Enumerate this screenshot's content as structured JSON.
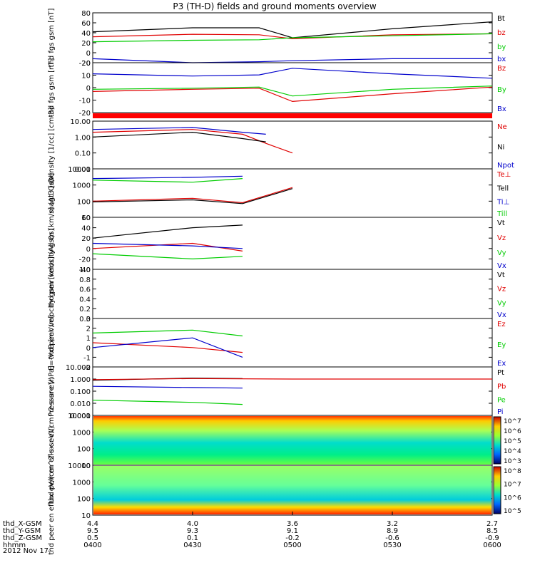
{
  "title": "P3 (TH-D) fields and ground moments overview",
  "colors": {
    "black": "#000000",
    "red": "#e00000",
    "green": "#00cc00",
    "blue": "#0000cc",
    "bar": "#ff0000"
  },
  "x_axis": {
    "tick_times": [
      "0400",
      "0430",
      "0500",
      "0530",
      "0600"
    ],
    "rows": [
      {
        "label": "thd_X-GSM",
        "values": [
          "4.4",
          "4.0",
          "3.6",
          "3.2",
          "2.7"
        ]
      },
      {
        "label": "thd_Y-GSM",
        "values": [
          "9.5",
          "9.3",
          "9.1",
          "8.9",
          "8.5"
        ]
      },
      {
        "label": "thd_Z-GSM",
        "values": [
          "0.5",
          "0.1",
          "-0.2",
          "-0.6",
          "-0.9"
        ]
      },
      {
        "label": "hhmm",
        "values": [
          "0400",
          "0430",
          "0500",
          "0530",
          "0600"
        ]
      }
    ],
    "date": "2012 Nov 17"
  },
  "chart_data": [
    {
      "type": "line",
      "ylabel": "thd fgs gsm [nT]",
      "ylim": [
        -20,
        80
      ],
      "ticks": [
        "80",
        "60",
        "40",
        "20",
        "0",
        "-20"
      ],
      "series": [
        {
          "name": "Bt",
          "color": "#000000",
          "x": [
            "0400",
            "0430",
            "0450",
            "0500",
            "0530",
            "0600"
          ],
          "values": [
            42,
            50,
            50,
            30,
            48,
            62
          ]
        },
        {
          "name": "bz",
          "color": "#e00000",
          "x": [
            "0400",
            "0430",
            "0450",
            "0500",
            "0530",
            "0600"
          ],
          "values": [
            32,
            37,
            36,
            28,
            36,
            38
          ]
        },
        {
          "name": "by",
          "color": "#00cc00",
          "x": [
            "0400",
            "0430",
            "0450",
            "0500",
            "0530",
            "0600"
          ],
          "values": [
            22,
            25,
            26,
            30,
            34,
            38
          ]
        },
        {
          "name": "bx",
          "color": "#0000cc",
          "x": [
            "0400",
            "0430",
            "0450",
            "0500",
            "0530",
            "0600"
          ],
          "values": [
            -12,
            -20,
            -18,
            -16,
            -12,
            -12
          ]
        }
      ]
    },
    {
      "type": "line",
      "ylabel": "thd fgs gsm [nT]",
      "ylim": [
        -25,
        20
      ],
      "ticks": [
        "20",
        "10",
        "0",
        "-10",
        "-20"
      ],
      "series": [
        {
          "name": "Bz",
          "color": "#e00000",
          "x": [
            "0400",
            "0430",
            "0450",
            "0500",
            "0530",
            "0600"
          ],
          "values": [
            -6,
            -4,
            -3,
            -15,
            -8,
            -2
          ]
        },
        {
          "name": "By",
          "color": "#00cc00",
          "x": [
            "0400",
            "0430",
            "0450",
            "0500",
            "0530",
            "0600"
          ],
          "values": [
            -4,
            -3,
            -2,
            -10,
            -4,
            -1
          ]
        },
        {
          "name": "Bx",
          "color": "#0000cc",
          "x": [
            "0400",
            "0430",
            "0450",
            "0500",
            "0530",
            "0600"
          ],
          "values": [
            10,
            8,
            9,
            15,
            10,
            6
          ]
        }
      ]
    },
    {
      "type": "line",
      "ylabel": "Density [1/cc] [cm-3]",
      "ylim": [
        0.01,
        10
      ],
      "log": true,
      "ticks": [
        "10.00",
        "1.00",
        "0.10",
        "0.01"
      ],
      "series": [
        {
          "name": "Ne",
          "color": "#e00000",
          "x": [
            "0400",
            "0430",
            "0445",
            "0452",
            "0500"
          ],
          "values": [
            2,
            3,
            1.5,
            0.4,
            0.1
          ]
        },
        {
          "name": "Ni",
          "color": "#000000",
          "x": [
            "0400",
            "0430",
            "0445",
            "0452"
          ],
          "values": [
            1,
            2,
            0.8,
            0.5
          ]
        },
        {
          "name": "Npot",
          "color": "#0000cc",
          "x": [
            "0400",
            "0430",
            "0445",
            "0452"
          ],
          "values": [
            3,
            4,
            2,
            1.5
          ]
        }
      ]
    },
    {
      "type": "line",
      "ylabel": "magt3 [eV]",
      "ylim": [
        10,
        10000
      ],
      "log": true,
      "ticks": [
        "10000",
        "1000",
        "100",
        "10"
      ],
      "series": [
        {
          "name": "Te⊥",
          "color": "#e00000",
          "x": [
            "0400",
            "0430",
            "0445",
            "0500"
          ],
          "values": [
            100,
            150,
            80,
            700
          ]
        },
        {
          "name": "Tell",
          "color": "#000000",
          "x": [
            "0400",
            "0430",
            "0445",
            "0500"
          ],
          "values": [
            90,
            120,
            70,
            600
          ]
        },
        {
          "name": "Ti⊥",
          "color": "#0000cc",
          "x": [
            "0400",
            "0430",
            "0445"
          ],
          "values": [
            2500,
            3000,
            3500
          ]
        },
        {
          "name": "Till",
          "color": "#00cc00",
          "x": [
            "0400",
            "0430",
            "0445"
          ],
          "values": [
            2000,
            1500,
            2500
          ]
        }
      ]
    },
    {
      "type": "line",
      "ylabel": "thd peir velocity gsm [km/s] (All Qs)",
      "ylim": [
        -40,
        60
      ],
      "ticks": [
        "60",
        "40",
        "20",
        "0",
        "-20",
        "-40"
      ],
      "series": [
        {
          "name": "Vt",
          "color": "#000000",
          "x": [
            "0400",
            "0430",
            "0445"
          ],
          "values": [
            20,
            40,
            45
          ]
        },
        {
          "name": "Vz",
          "color": "#e00000",
          "x": [
            "0400",
            "0430",
            "0445"
          ],
          "values": [
            0,
            10,
            -5
          ]
        },
        {
          "name": "Vy",
          "color": "#00cc00",
          "x": [
            "0400",
            "0430",
            "0445"
          ],
          "values": [
            -10,
            -20,
            -15
          ]
        },
        {
          "name": "Vx",
          "color": "#0000cc",
          "x": [
            "0400",
            "0430",
            "0445"
          ],
          "values": [
            10,
            5,
            0
          ]
        }
      ]
    },
    {
      "type": "line",
      "ylabel": "thd peer velocity gsm [km/s] (All Qs)",
      "ylim": [
        0,
        1
      ],
      "ticks": [
        "1.0",
        "0.8",
        "0.6",
        "0.4",
        "0.2",
        "0.0"
      ],
      "series": [
        {
          "name": "Vt",
          "color": "#000000",
          "x": [],
          "values": []
        },
        {
          "name": "Vz",
          "color": "#e00000",
          "x": [],
          "values": []
        },
        {
          "name": "Vy",
          "color": "#00cc00",
          "x": [],
          "values": []
        },
        {
          "name": "Vx",
          "color": "#0000cc",
          "x": [],
          "values": []
        }
      ]
    },
    {
      "type": "line",
      "ylabel": "E=-VxB [mV/m]",
      "ylim": [
        -2,
        3
      ],
      "ticks": [
        "3",
        "2",
        "1",
        "0",
        "-1",
        "-2"
      ],
      "series": [
        {
          "name": "Ez",
          "color": "#e00000",
          "x": [
            "0400",
            "0430",
            "0445"
          ],
          "values": [
            0.5,
            0,
            -0.5
          ]
        },
        {
          "name": "Ey",
          "color": "#00cc00",
          "x": [
            "0400",
            "0430",
            "0445"
          ],
          "values": [
            1.5,
            1.8,
            1.2
          ]
        },
        {
          "name": "Ex",
          "color": "#0000cc",
          "x": [
            "0400",
            "0430",
            "0445"
          ],
          "values": [
            0,
            1,
            -1
          ]
        }
      ]
    },
    {
      "type": "line",
      "ylabel": "Pressure [nPa]",
      "ylim": [
        0.001,
        10
      ],
      "log": true,
      "ticks": [
        "10.000",
        "1.000",
        "0.100",
        "0.010",
        "0.001"
      ],
      "series": [
        {
          "name": "Pt",
          "color": "#000000",
          "x": [
            "0400",
            "0430",
            "0445"
          ],
          "values": [
            0.8,
            1.2,
            1.1
          ]
        },
        {
          "name": "Pb",
          "color": "#e00000",
          "x": [
            "0400",
            "0430",
            "0500",
            "0600"
          ],
          "values": [
            0.9,
            1.1,
            1.0,
            1.0
          ]
        },
        {
          "name": "Pe",
          "color": "#00cc00",
          "x": [
            "0400",
            "0430",
            "0445"
          ],
          "values": [
            0.018,
            0.012,
            0.008
          ]
        },
        {
          "name": "Pi",
          "color": "#0000cc",
          "x": [
            "0400",
            "0430",
            "0445"
          ],
          "values": [
            0.25,
            0.2,
            0.18
          ]
        }
      ]
    },
    {
      "type": "heatmap",
      "ylabel": "thd peir en eflux eV/(cm^2-s-sr-eV)",
      "ylim": [
        10,
        10000
      ],
      "log": true,
      "ticks": [
        "10000",
        "1000",
        "100",
        "10"
      ],
      "colorbar": {
        "min_exp": 2,
        "max_exp": 7,
        "labels": [
          "10^7",
          "10^6",
          "10^5",
          "10^4",
          "10^3"
        ]
      }
    },
    {
      "type": "heatmap",
      "ylabel": "thd peer en eflux eV/(cm^2-s-sr-eV)",
      "ylim": [
        10,
        10000
      ],
      "log": true,
      "ticks": [
        "10000",
        "1000",
        "100",
        "10"
      ],
      "colorbar": {
        "min_exp": 4,
        "max_exp": 8,
        "labels": [
          "10^8",
          "10^7",
          "10^6",
          "10^5"
        ]
      }
    }
  ]
}
